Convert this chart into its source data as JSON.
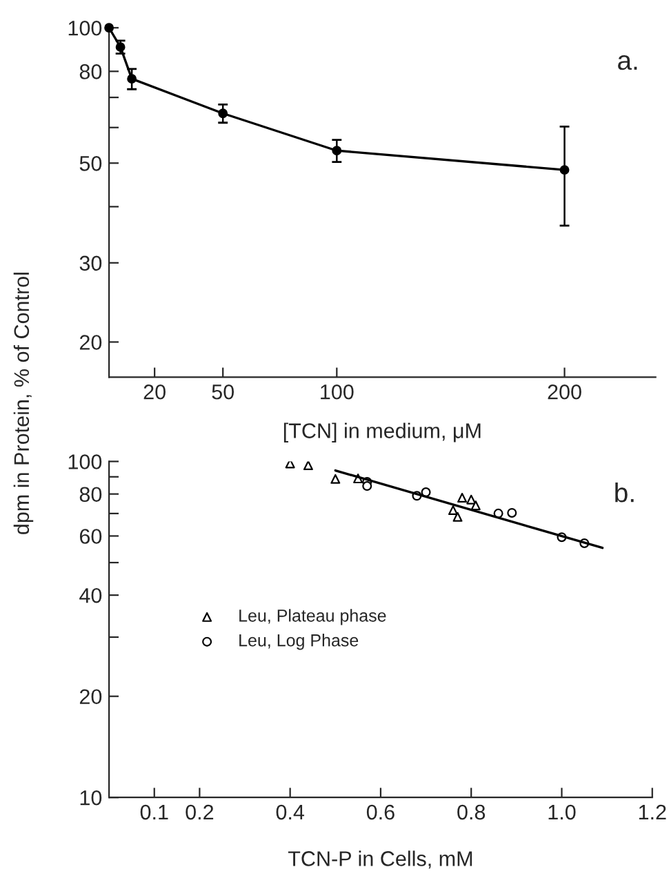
{
  "chart_data": [
    {
      "type": "line",
      "xlabel": "[TCN] in medium, μM",
      "ylabel": "dpm in Protein, % of Control",
      "log": "y",
      "marker": "circle",
      "line_style": "solid",
      "grid": false,
      "legend": false,
      "x": [
        0,
        5,
        10,
        50,
        100,
        200
      ],
      "series": [
        {
          "color": "#000000",
          "values": [
            100,
            90.6,
            77,
            64.5,
            53.3,
            48.3
          ],
          "errors": [
            null,
            3,
            4,
            3,
            3,
            12
          ]
        }
      ],
      "xlim": [
        0,
        240
      ],
      "xticks": [
        20,
        50,
        100,
        200
      ],
      "ylim": [
        16.7,
        100
      ],
      "yticks": [
        20,
        30,
        {
          "value": 40,
          "label": null
        },
        50,
        {
          "value": 60,
          "label": null
        },
        {
          "value": 70,
          "label": null
        },
        80,
        100
      ],
      "annotations": [
        "a."
      ]
    },
    {
      "type": "scatter",
      "xlabel": "TCN-P in Cells, mM",
      "log": "y",
      "grid": false,
      "legend": "center left",
      "series": [
        {
          "name": "Leu, Plateau phase",
          "color": "#000000",
          "marker": "triangle",
          "x": [
            0.4,
            0.44,
            0.5,
            0.55,
            0.76,
            0.77,
            0.78,
            0.8,
            0.81
          ],
          "values": [
            98.6,
            97.4,
            88.7,
            89,
            71.6,
            68.4,
            78,
            77,
            74
          ]
        },
        {
          "name": "Leu, Log Phase",
          "color": "#000000",
          "marker": "circle",
          "x": [
            0.57,
            0.57,
            0.68,
            0.7,
            0.86,
            0.89,
            1.0,
            1.05
          ],
          "values": [
            87,
            84.5,
            79,
            81,
            70,
            70.3,
            59.5,
            57.1
          ]
        },
        {
          "type": "line",
          "color": "#000000",
          "marker": "none",
          "x": [
            0.5,
            1.09
          ],
          "values": [
            94,
            55.3
          ]
        }
      ],
      "xlim": [
        0,
        1.2
      ],
      "xticks": [
        0.1,
        0.2,
        0.4,
        0.6,
        0.8,
        {
          "value": 1.0,
          "label": "1.0"
        },
        1.2
      ],
      "ylim": [
        10,
        100
      ],
      "yticks": [
        10,
        20,
        {
          "value": 30,
          "label": null
        },
        40,
        {
          "value": 50,
          "label": null
        },
        60,
        {
          "value": 70,
          "label": null
        },
        80,
        {
          "value": 90,
          "label": null
        },
        100
      ],
      "annotations": [
        "b."
      ]
    }
  ]
}
